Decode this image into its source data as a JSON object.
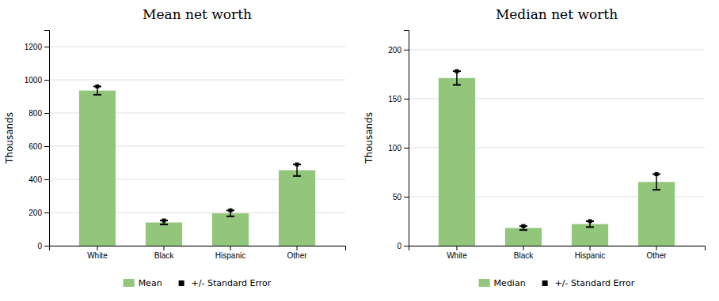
{
  "chart_data": [
    {
      "type": "bar",
      "title": "Mean net worth",
      "categories": [
        "White",
        "Black",
        "Hispanic",
        "Other"
      ],
      "series": [
        {
          "name": "Mean",
          "color": "#92C67A",
          "values": [
            935,
            140,
            195,
            455
          ],
          "errors": [
            25,
            12,
            18,
            35
          ],
          "error_name": "+/- Standard Error"
        }
      ],
      "y_label": "Thousands",
      "ylim": [
        0,
        1300
      ],
      "yticks": [
        0,
        200,
        400,
        600,
        800,
        1000,
        1200
      ],
      "grid": true,
      "legend": "bottom"
    },
    {
      "type": "bar",
      "title": "Median net worth",
      "categories": [
        "White",
        "Black",
        "Hispanic",
        "Other"
      ],
      "series": [
        {
          "name": "Median",
          "color": "#92C67A",
          "values": [
            171,
            18,
            22,
            65
          ],
          "errors": [
            7,
            2,
            3,
            8
          ],
          "error_name": "+/- Standard Error"
        }
      ],
      "y_label": "Thousands",
      "ylim": [
        0,
        220
      ],
      "yticks": [
        0,
        50,
        100,
        150,
        200
      ],
      "grid": true,
      "legend": "bottom"
    }
  ]
}
